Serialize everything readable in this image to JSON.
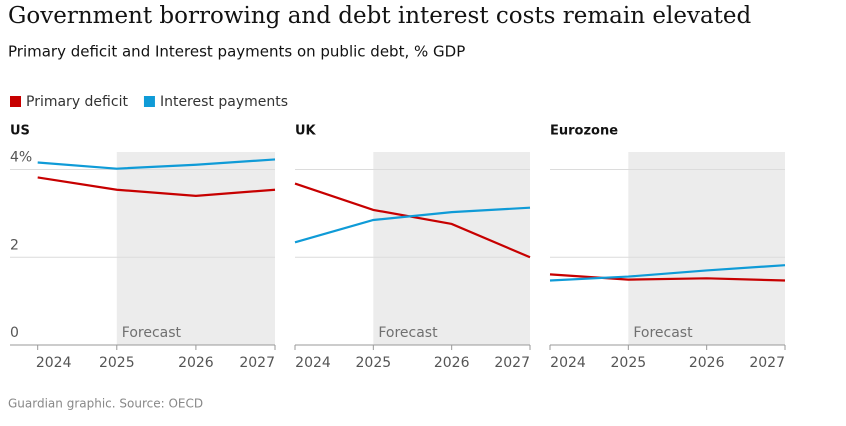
{
  "header": {
    "title": "Government borrowing and debt interest costs remain elevated",
    "subtitle": "Primary deficit and Interest payments on public debt, % GDP"
  },
  "footer": {
    "source": "Guardian graphic. Source: OECD"
  },
  "chart_data": [
    {
      "type": "line",
      "title": "US",
      "x": [
        2024,
        2025,
        2026,
        2027
      ],
      "xlim": [
        2023.65,
        2027
      ],
      "ylim": [
        0,
        4.4
      ],
      "yticks": [
        0,
        2,
        {
          "value": 4,
          "label": "4%"
        }
      ],
      "grid": true,
      "legend": "top-left",
      "forecast_start": 2025,
      "forecast_label": "Forecast",
      "series": [
        {
          "name": "Primary deficit",
          "color": "#c70000",
          "values": [
            3.82,
            3.54,
            3.4,
            3.54
          ]
        },
        {
          "name": "Interest payments",
          "color": "#0f9bd7",
          "values": [
            4.16,
            4.02,
            4.11,
            4.23
          ]
        }
      ]
    },
    {
      "type": "line",
      "title": "UK",
      "x": [
        2024,
        2025,
        2026,
        2027
      ],
      "xlim": [
        2024,
        2027
      ],
      "forecast_start": 2025,
      "forecast_label": "Forecast",
      "series": [
        {
          "color": "#c70000",
          "values": [
            3.68,
            3.08,
            2.76,
            2.0
          ]
        },
        {
          "color": "#0f9bd7",
          "values": [
            2.34,
            2.85,
            3.03,
            3.13
          ]
        }
      ]
    },
    {
      "type": "line",
      "title": "Eurozone",
      "x": [
        2024,
        2025,
        2026,
        2027
      ],
      "xlim": [
        2024,
        2027
      ],
      "forecast_start": 2025,
      "forecast_label": "Forecast",
      "series": [
        {
          "color": "#c70000",
          "values": [
            1.61,
            1.49,
            1.52,
            1.47
          ]
        },
        {
          "color": "#0f9bd7",
          "values": [
            1.47,
            1.56,
            1.7,
            1.82
          ]
        }
      ]
    }
  ]
}
